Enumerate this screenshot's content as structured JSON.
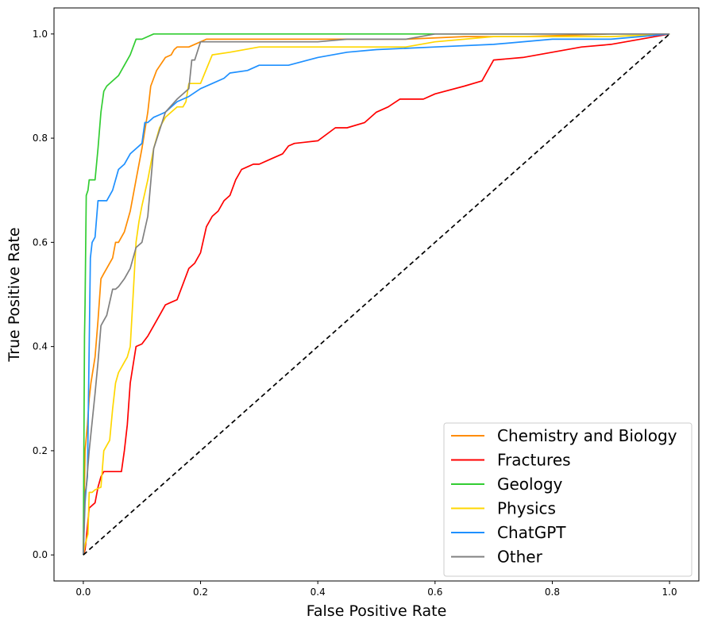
{
  "chart_data": {
    "type": "line",
    "title": "",
    "xlabel": "False Positive Rate",
    "ylabel": "True Positive Rate",
    "xlim": [
      -0.05,
      1.05
    ],
    "ylim": [
      -0.05,
      1.05
    ],
    "xticks": [
      "0.0",
      "0.2",
      "0.4",
      "0.6",
      "0.8",
      "1.0"
    ],
    "yticks": [
      "0.0",
      "0.2",
      "0.4",
      "0.6",
      "0.8",
      "1.0"
    ],
    "grid": false,
    "legend_position": "lower right",
    "series": [
      {
        "name": "Chemistry and Biology",
        "color": "#ff8c00",
        "x": [
          0,
          0.003,
          0.007,
          0.01,
          0.013,
          0.02,
          0.025,
          0.03,
          0.035,
          0.04,
          0.05,
          0.055,
          0.06,
          0.07,
          0.08,
          0.09,
          0.1,
          0.11,
          0.115,
          0.125,
          0.14,
          0.15,
          0.155,
          0.16,
          0.18,
          0.2,
          0.21,
          0.3,
          0.45,
          0.55,
          0.65,
          0.75,
          0.9,
          1.0
        ],
        "y": [
          0,
          0.2,
          0.25,
          0.3,
          0.33,
          0.38,
          0.45,
          0.53,
          0.54,
          0.55,
          0.57,
          0.6,
          0.6,
          0.62,
          0.66,
          0.72,
          0.78,
          0.85,
          0.9,
          0.93,
          0.955,
          0.96,
          0.97,
          0.975,
          0.975,
          0.985,
          0.99,
          0.99,
          0.99,
          0.99,
          0.995,
          0.995,
          1.0,
          1.0
        ]
      },
      {
        "name": "Fractures",
        "color": "#ff0000",
        "x": [
          0,
          0.003,
          0.005,
          0.01,
          0.02,
          0.025,
          0.03,
          0.035,
          0.04,
          0.05,
          0.065,
          0.07,
          0.075,
          0.08,
          0.09,
          0.1,
          0.11,
          0.115,
          0.12,
          0.13,
          0.14,
          0.15,
          0.16,
          0.17,
          0.18,
          0.19,
          0.2,
          0.21,
          0.22,
          0.23,
          0.24,
          0.25,
          0.26,
          0.27,
          0.28,
          0.29,
          0.3,
          0.32,
          0.34,
          0.35,
          0.36,
          0.4,
          0.43,
          0.45,
          0.48,
          0.5,
          0.52,
          0.54,
          0.58,
          0.6,
          0.65,
          0.68,
          0.7,
          0.75,
          0.8,
          0.85,
          0.9,
          0.95,
          1.0
        ],
        "y": [
          0,
          0.01,
          0.03,
          0.09,
          0.1,
          0.13,
          0.15,
          0.16,
          0.16,
          0.16,
          0.16,
          0.2,
          0.25,
          0.33,
          0.4,
          0.405,
          0.42,
          0.43,
          0.44,
          0.46,
          0.48,
          0.485,
          0.49,
          0.52,
          0.55,
          0.56,
          0.58,
          0.63,
          0.65,
          0.66,
          0.68,
          0.69,
          0.72,
          0.74,
          0.745,
          0.75,
          0.75,
          0.76,
          0.77,
          0.785,
          0.79,
          0.795,
          0.82,
          0.82,
          0.83,
          0.85,
          0.86,
          0.875,
          0.875,
          0.885,
          0.9,
          0.91,
          0.95,
          0.955,
          0.965,
          0.975,
          0.98,
          0.99,
          1.0
        ]
      },
      {
        "name": "Geology",
        "color": "#32cd32",
        "x": [
          0,
          0.002,
          0.003,
          0.005,
          0.008,
          0.01,
          0.02,
          0.025,
          0.03,
          0.035,
          0.04,
          0.05,
          0.06,
          0.07,
          0.08,
          0.09,
          0.1,
          0.12,
          0.15,
          0.2,
          0.3,
          0.5,
          1.0
        ],
        "y": [
          0,
          0.42,
          0.48,
          0.69,
          0.7,
          0.72,
          0.72,
          0.78,
          0.85,
          0.89,
          0.9,
          0.91,
          0.92,
          0.94,
          0.96,
          0.99,
          0.99,
          1.0,
          1.0,
          1.0,
          1.0,
          1.0,
          1.0
        ]
      },
      {
        "name": "Physics",
        "color": "#ffd700",
        "x": [
          0,
          0.003,
          0.008,
          0.01,
          0.015,
          0.02,
          0.03,
          0.035,
          0.04,
          0.045,
          0.05,
          0.055,
          0.06,
          0.07,
          0.075,
          0.08,
          0.085,
          0.09,
          0.095,
          0.1,
          0.11,
          0.12,
          0.13,
          0.14,
          0.15,
          0.16,
          0.17,
          0.175,
          0.18,
          0.2,
          0.22,
          0.25,
          0.3,
          0.4,
          0.5,
          0.55,
          0.6,
          0.65,
          0.7,
          0.8,
          0.9,
          1.0
        ],
        "y": [
          0,
          0.02,
          0.04,
          0.12,
          0.12,
          0.125,
          0.13,
          0.2,
          0.21,
          0.22,
          0.28,
          0.33,
          0.35,
          0.37,
          0.38,
          0.4,
          0.5,
          0.6,
          0.64,
          0.67,
          0.72,
          0.78,
          0.82,
          0.84,
          0.85,
          0.86,
          0.86,
          0.87,
          0.905,
          0.905,
          0.96,
          0.965,
          0.975,
          0.975,
          0.975,
          0.975,
          0.985,
          0.99,
          0.995,
          0.995,
          0.995,
          1.0
        ]
      },
      {
        "name": "ChatGPT",
        "color": "#1e90ff",
        "x": [
          0,
          0.003,
          0.005,
          0.007,
          0.01,
          0.012,
          0.015,
          0.02,
          0.025,
          0.03,
          0.04,
          0.05,
          0.055,
          0.06,
          0.07,
          0.08,
          0.09,
          0.1,
          0.105,
          0.11,
          0.12,
          0.13,
          0.14,
          0.15,
          0.16,
          0.18,
          0.2,
          0.22,
          0.24,
          0.25,
          0.28,
          0.3,
          0.35,
          0.4,
          0.45,
          0.5,
          0.6,
          0.7,
          0.8,
          0.9,
          0.95,
          1.0
        ],
        "y": [
          0,
          0.1,
          0.13,
          0.15,
          0.4,
          0.57,
          0.6,
          0.61,
          0.68,
          0.68,
          0.68,
          0.7,
          0.72,
          0.74,
          0.75,
          0.77,
          0.78,
          0.79,
          0.83,
          0.83,
          0.84,
          0.845,
          0.85,
          0.86,
          0.87,
          0.88,
          0.895,
          0.905,
          0.915,
          0.925,
          0.93,
          0.94,
          0.94,
          0.955,
          0.965,
          0.97,
          0.975,
          0.98,
          0.99,
          0.99,
          0.995,
          1.0
        ]
      },
      {
        "name": "Other",
        "color": "#808080",
        "x": [
          0,
          0.003,
          0.005,
          0.01,
          0.02,
          0.025,
          0.03,
          0.035,
          0.04,
          0.05,
          0.055,
          0.06,
          0.07,
          0.08,
          0.09,
          0.1,
          0.11,
          0.12,
          0.14,
          0.16,
          0.18,
          0.185,
          0.19,
          0.2,
          0.25,
          0.3,
          0.4,
          0.45,
          0.5,
          0.55,
          0.6,
          0.7,
          0.8,
          1.0
        ],
        "y": [
          0,
          0.12,
          0.13,
          0.2,
          0.31,
          0.37,
          0.44,
          0.45,
          0.46,
          0.51,
          0.51,
          0.515,
          0.53,
          0.55,
          0.59,
          0.6,
          0.65,
          0.78,
          0.85,
          0.875,
          0.895,
          0.95,
          0.95,
          0.985,
          0.985,
          0.985,
          0.985,
          0.99,
          0.99,
          0.99,
          1.0,
          1.0,
          1.0,
          1.0
        ]
      }
    ],
    "reference_line": {
      "style": "dashed",
      "color": "#000000",
      "x": [
        0,
        1
      ],
      "y": [
        0,
        1
      ]
    }
  }
}
